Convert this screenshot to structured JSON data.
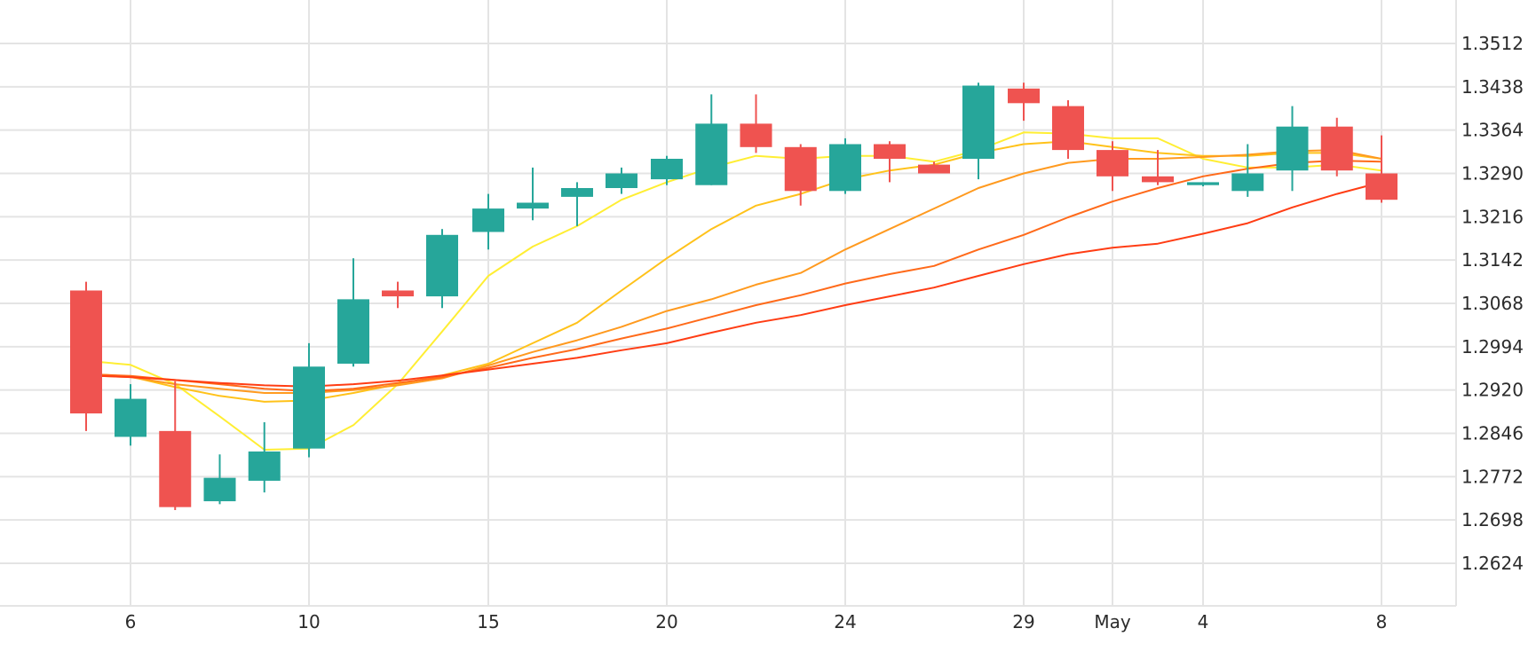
{
  "colors": {
    "background": "#ffffff",
    "grid": "#e4e4e4",
    "up": "#26a69a",
    "down": "#ef5350",
    "axis_text": "#2b2b2b"
  },
  "chart_data": {
    "type": "candlestick",
    "title": "",
    "xlabel": "",
    "ylabel": "",
    "y_axis_position": "right",
    "grid": true,
    "ylim": [
      1.255,
      1.358
    ],
    "y_ticks": [
      "1.2624",
      "1.2698",
      "1.2772",
      "1.2846",
      "1.2920",
      "1.2994",
      "1.3068",
      "1.3142",
      "1.3216",
      "1.3290",
      "1.3364",
      "1.3438",
      "1.3512"
    ],
    "x_tick_labels": [
      {
        "date": "2020-04-06",
        "label": "6"
      },
      {
        "date": "2020-04-10",
        "label": "10"
      },
      {
        "date": "2020-04-15",
        "label": "15"
      },
      {
        "date": "2020-04-20",
        "label": "20"
      },
      {
        "date": "2020-04-24",
        "label": "24"
      },
      {
        "date": "2020-04-29",
        "label": "29"
      },
      {
        "date": "2020-05-01",
        "label": "May"
      },
      {
        "date": "2020-05-04",
        "label": "4"
      },
      {
        "date": "2020-05-08",
        "label": "8"
      }
    ],
    "candles": [
      {
        "date": "2020-04-05",
        "open": 1.309,
        "high": 1.3105,
        "low": 1.285,
        "close": 1.288
      },
      {
        "date": "2020-04-06",
        "open": 1.284,
        "high": 1.293,
        "low": 1.2825,
        "close": 1.2905
      },
      {
        "date": "2020-04-07",
        "open": 1.285,
        "high": 1.2935,
        "low": 1.2715,
        "close": 1.272
      },
      {
        "date": "2020-04-08",
        "open": 1.273,
        "high": 1.281,
        "low": 1.2725,
        "close": 1.277
      },
      {
        "date": "2020-04-09",
        "open": 1.2765,
        "high": 1.2865,
        "low": 1.2745,
        "close": 1.2815
      },
      {
        "date": "2020-04-10",
        "open": 1.282,
        "high": 1.3,
        "low": 1.2805,
        "close": 1.296
      },
      {
        "date": "2020-04-11",
        "open": 1.2965,
        "high": 1.3145,
        "low": 1.296,
        "close": 1.3075
      },
      {
        "date": "2020-04-12",
        "open": 1.309,
        "high": 1.3105,
        "low": 1.306,
        "close": 1.308
      },
      {
        "date": "2020-04-13",
        "open": 1.308,
        "high": 1.3195,
        "low": 1.306,
        "close": 1.3185
      },
      {
        "date": "2020-04-15",
        "open": 1.319,
        "high": 1.3255,
        "low": 1.316,
        "close": 1.323
      },
      {
        "date": "2020-04-16",
        "open": 1.323,
        "high": 1.33,
        "low": 1.321,
        "close": 1.324
      },
      {
        "date": "2020-04-17",
        "open": 1.325,
        "high": 1.3275,
        "low": 1.32,
        "close": 1.3265
      },
      {
        "date": "2020-04-18",
        "open": 1.3265,
        "high": 1.33,
        "low": 1.3255,
        "close": 1.329
      },
      {
        "date": "2020-04-20",
        "open": 1.328,
        "high": 1.332,
        "low": 1.327,
        "close": 1.3315
      },
      {
        "date": "2020-04-21",
        "open": 1.327,
        "high": 1.3425,
        "low": 1.327,
        "close": 1.3375
      },
      {
        "date": "2020-04-22",
        "open": 1.3375,
        "high": 1.3425,
        "low": 1.3325,
        "close": 1.3335
      },
      {
        "date": "2020-04-23",
        "open": 1.3335,
        "high": 1.334,
        "low": 1.3235,
        "close": 1.326
      },
      {
        "date": "2020-04-24",
        "open": 1.326,
        "high": 1.335,
        "low": 1.3255,
        "close": 1.334
      },
      {
        "date": "2020-04-25",
        "open": 1.334,
        "high": 1.3345,
        "low": 1.3275,
        "close": 1.3315
      },
      {
        "date": "2020-04-27",
        "open": 1.3305,
        "high": 1.331,
        "low": 1.329,
        "close": 1.329
      },
      {
        "date": "2020-04-28",
        "open": 1.3315,
        "high": 1.3445,
        "low": 1.328,
        "close": 1.344
      },
      {
        "date": "2020-04-29",
        "open": 1.3435,
        "high": 1.3445,
        "low": 1.338,
        "close": 1.341
      },
      {
        "date": "2020-04-30",
        "open": 1.3405,
        "high": 1.3415,
        "low": 1.3315,
        "close": 1.333
      },
      {
        "date": "2020-05-01",
        "open": 1.333,
        "high": 1.3345,
        "low": 1.326,
        "close": 1.3285
      },
      {
        "date": "2020-05-02",
        "open": 1.3285,
        "high": 1.333,
        "low": 1.327,
        "close": 1.3275
      },
      {
        "date": "2020-05-04",
        "open": 1.327,
        "high": 1.3275,
        "low": 1.3268,
        "close": 1.3275
      },
      {
        "date": "2020-05-05",
        "open": 1.326,
        "high": 1.334,
        "low": 1.325,
        "close": 1.329
      },
      {
        "date": "2020-05-06",
        "open": 1.3295,
        "high": 1.3405,
        "low": 1.326,
        "close": 1.337
      },
      {
        "date": "2020-05-07",
        "open": 1.337,
        "high": 1.3385,
        "low": 1.3285,
        "close": 1.3295
      },
      {
        "date": "2020-05-08",
        "open": 1.329,
        "high": 1.3355,
        "low": 1.324,
        "close": 1.3245
      }
    ],
    "series": [
      {
        "color": "#ffee33",
        "points": [
          [
            "2020-04-05",
            1.297
          ],
          [
            "2020-04-06",
            1.2963
          ],
          [
            "2020-04-07",
            1.293
          ],
          [
            "2020-04-08",
            1.2875
          ],
          [
            "2020-04-09",
            1.2818
          ],
          [
            "2020-04-10",
            1.282
          ],
          [
            "2020-04-11",
            1.286
          ],
          [
            "2020-04-12",
            1.293
          ],
          [
            "2020-04-13",
            1.302
          ],
          [
            "2020-04-15",
            1.3115
          ],
          [
            "2020-04-16",
            1.3165
          ],
          [
            "2020-04-17",
            1.32
          ],
          [
            "2020-04-18",
            1.3245
          ],
          [
            "2020-04-20",
            1.3275
          ],
          [
            "2020-04-21",
            1.33
          ],
          [
            "2020-04-22",
            1.332
          ],
          [
            "2020-04-23",
            1.3315
          ],
          [
            "2020-04-24",
            1.332
          ],
          [
            "2020-04-25",
            1.332
          ],
          [
            "2020-04-27",
            1.331
          ],
          [
            "2020-04-28",
            1.333
          ],
          [
            "2020-04-29",
            1.336
          ],
          [
            "2020-04-30",
            1.3358
          ],
          [
            "2020-05-01",
            1.335
          ],
          [
            "2020-05-02",
            1.335
          ],
          [
            "2020-05-04",
            1.3315
          ],
          [
            "2020-05-05",
            1.33
          ],
          [
            "2020-05-06",
            1.33
          ],
          [
            "2020-05-07",
            1.3305
          ],
          [
            "2020-05-08",
            1.3295
          ]
        ]
      },
      {
        "color": "#ffc21a",
        "points": [
          [
            "2020-04-05",
            1.2948
          ],
          [
            "2020-04-06",
            1.2943
          ],
          [
            "2020-04-07",
            1.2925
          ],
          [
            "2020-04-08",
            1.291
          ],
          [
            "2020-04-09",
            1.29
          ],
          [
            "2020-04-10",
            1.2902
          ],
          [
            "2020-04-11",
            1.2915
          ],
          [
            "2020-04-12",
            1.293
          ],
          [
            "2020-04-13",
            1.2945
          ],
          [
            "2020-04-15",
            1.2965
          ],
          [
            "2020-04-16",
            1.3
          ],
          [
            "2020-04-17",
            1.3035
          ],
          [
            "2020-04-18",
            1.309
          ],
          [
            "2020-04-20",
            1.3145
          ],
          [
            "2020-04-21",
            1.3195
          ],
          [
            "2020-04-22",
            1.3235
          ],
          [
            "2020-04-23",
            1.3255
          ],
          [
            "2020-04-24",
            1.328
          ],
          [
            "2020-04-25",
            1.3295
          ],
          [
            "2020-04-27",
            1.3305
          ],
          [
            "2020-04-28",
            1.3325
          ],
          [
            "2020-04-29",
            1.334
          ],
          [
            "2020-04-30",
            1.3345
          ],
          [
            "2020-05-01",
            1.3335
          ],
          [
            "2020-05-02",
            1.3325
          ],
          [
            "2020-05-04",
            1.332
          ],
          [
            "2020-05-05",
            1.332
          ],
          [
            "2020-05-06",
            1.3325
          ],
          [
            "2020-05-07",
            1.3325
          ],
          [
            "2020-05-08",
            1.3315
          ]
        ]
      },
      {
        "color": "#ff9a1f",
        "points": [
          [
            "2020-04-05",
            1.2945
          ],
          [
            "2020-04-06",
            1.2942
          ],
          [
            "2020-04-07",
            1.293
          ],
          [
            "2020-04-08",
            1.2922
          ],
          [
            "2020-04-09",
            1.2915
          ],
          [
            "2020-04-10",
            1.2915
          ],
          [
            "2020-04-11",
            1.292
          ],
          [
            "2020-04-12",
            1.2928
          ],
          [
            "2020-04-13",
            1.294
          ],
          [
            "2020-04-15",
            1.2962
          ],
          [
            "2020-04-16",
            1.2985
          ],
          [
            "2020-04-17",
            1.3005
          ],
          [
            "2020-04-18",
            1.3028
          ],
          [
            "2020-04-20",
            1.3055
          ],
          [
            "2020-04-21",
            1.3075
          ],
          [
            "2020-04-22",
            1.31
          ],
          [
            "2020-04-23",
            1.312
          ],
          [
            "2020-04-24",
            1.316
          ],
          [
            "2020-04-25",
            1.3195
          ],
          [
            "2020-04-27",
            1.323
          ],
          [
            "2020-04-28",
            1.3265
          ],
          [
            "2020-04-29",
            1.329
          ],
          [
            "2020-04-30",
            1.3308
          ],
          [
            "2020-05-01",
            1.3315
          ],
          [
            "2020-05-02",
            1.3315
          ],
          [
            "2020-05-04",
            1.3318
          ],
          [
            "2020-05-05",
            1.3322
          ],
          [
            "2020-05-06",
            1.3328
          ],
          [
            "2020-05-07",
            1.333
          ],
          [
            "2020-05-08",
            1.3315
          ]
        ]
      },
      {
        "color": "#ff6a1a",
        "points": [
          [
            "2020-04-05",
            1.2947
          ],
          [
            "2020-04-06",
            1.2944
          ],
          [
            "2020-04-07",
            1.2937
          ],
          [
            "2020-04-08",
            1.293
          ],
          [
            "2020-04-09",
            1.2922
          ],
          [
            "2020-04-10",
            1.2918
          ],
          [
            "2020-04-11",
            1.2922
          ],
          [
            "2020-04-12",
            1.2932
          ],
          [
            "2020-04-13",
            1.2942
          ],
          [
            "2020-04-15",
            1.2958
          ],
          [
            "2020-04-16",
            1.2975
          ],
          [
            "2020-04-17",
            1.299
          ],
          [
            "2020-04-18",
            1.3008
          ],
          [
            "2020-04-20",
            1.3025
          ],
          [
            "2020-04-21",
            1.3045
          ],
          [
            "2020-04-22",
            1.3065
          ],
          [
            "2020-04-23",
            1.3082
          ],
          [
            "2020-04-24",
            1.3102
          ],
          [
            "2020-04-25",
            1.3118
          ],
          [
            "2020-04-27",
            1.3132
          ],
          [
            "2020-04-28",
            1.316
          ],
          [
            "2020-04-29",
            1.3185
          ],
          [
            "2020-04-30",
            1.3215
          ],
          [
            "2020-05-01",
            1.3242
          ],
          [
            "2020-05-02",
            1.3265
          ],
          [
            "2020-05-04",
            1.3285
          ],
          [
            "2020-05-05",
            1.3298
          ],
          [
            "2020-05-06",
            1.3308
          ],
          [
            "2020-05-07",
            1.3312
          ],
          [
            "2020-05-08",
            1.331
          ]
        ]
      },
      {
        "color": "#ff3d14",
        "points": [
          [
            "2020-04-05",
            1.2945
          ],
          [
            "2020-04-06",
            1.2942
          ],
          [
            "2020-04-07",
            1.2937
          ],
          [
            "2020-04-08",
            1.2932
          ],
          [
            "2020-04-09",
            1.2928
          ],
          [
            "2020-04-10",
            1.2926
          ],
          [
            "2020-04-11",
            1.293
          ],
          [
            "2020-04-12",
            1.2936
          ],
          [
            "2020-04-13",
            1.2945
          ],
          [
            "2020-04-15",
            1.2955
          ],
          [
            "2020-04-16",
            1.2965
          ],
          [
            "2020-04-17",
            1.2975
          ],
          [
            "2020-04-18",
            1.2988
          ],
          [
            "2020-04-20",
            1.3
          ],
          [
            "2020-04-21",
            1.3018
          ],
          [
            "2020-04-22",
            1.3035
          ],
          [
            "2020-04-23",
            1.3048
          ],
          [
            "2020-04-24",
            1.3065
          ],
          [
            "2020-04-25",
            1.308
          ],
          [
            "2020-04-27",
            1.3095
          ],
          [
            "2020-04-28",
            1.3115
          ],
          [
            "2020-04-29",
            1.3135
          ],
          [
            "2020-04-30",
            1.3152
          ],
          [
            "2020-05-01",
            1.3163
          ],
          [
            "2020-05-02",
            1.317
          ],
          [
            "2020-05-04",
            1.3187
          ],
          [
            "2020-05-05",
            1.3205
          ],
          [
            "2020-05-06",
            1.3232
          ],
          [
            "2020-05-07",
            1.3255
          ],
          [
            "2020-05-08",
            1.3275
          ]
        ]
      }
    ]
  }
}
